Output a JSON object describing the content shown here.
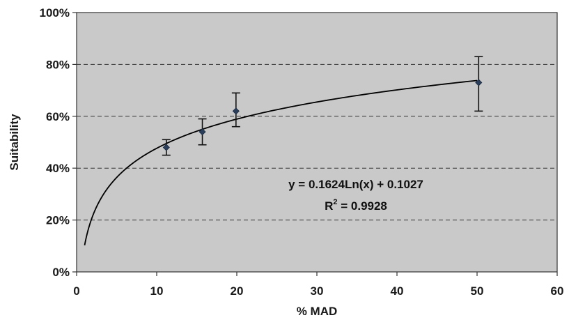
{
  "chart_data": {
    "type": "scatter",
    "title": "",
    "xlabel": "% MAD",
    "ylabel": "Suitability",
    "xlim": [
      0,
      60
    ],
    "ylim": [
      0,
      1
    ],
    "x_ticks": [
      "0",
      "10",
      "20",
      "30",
      "40",
      "50",
      "60"
    ],
    "y_ticks": [
      "0%",
      "20%",
      "40%",
      "60%",
      "80%",
      "100%"
    ],
    "grid": "horizontal dashed",
    "legend": "none",
    "series": [
      {
        "points": [
          {
            "x": 11.2,
            "y": 0.48,
            "err_low": 0.45,
            "err_high": 0.51
          },
          {
            "x": 15.7,
            "y": 0.54,
            "err_low": 0.49,
            "err_high": 0.59
          },
          {
            "x": 19.9,
            "y": 0.62,
            "err_low": 0.56,
            "err_high": 0.69
          },
          {
            "x": 50.2,
            "y": 0.73,
            "err_low": 0.62,
            "err_high": 0.83
          }
        ]
      }
    ],
    "trendline": {
      "type": "logarithmic",
      "a": 0.1624,
      "b": 0.1027,
      "x_range": [
        1,
        50
      ],
      "equation": "y = 0.1624Ln(x) + 0.1027",
      "r2_prefix": "R",
      "r2_sup": "2",
      "r2_suffix": " = 0.9928"
    },
    "colors": {
      "plot_bg": "#c9c9c9",
      "frame": "#333333",
      "grid": "#333333",
      "marker": "#2b3f5c",
      "curve": "#000000"
    }
  }
}
